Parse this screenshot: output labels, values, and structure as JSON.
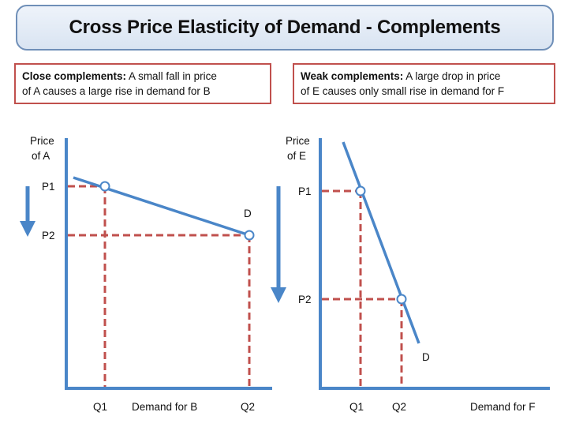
{
  "title": "Cross Price Elasticity of Demand - Complements",
  "notes": {
    "left": {
      "heading": "Close complements:",
      "text_line1": " A small fall in price",
      "text_line2": "of A causes a large rise in demand for B"
    },
    "right": {
      "heading": "Weak complements:",
      "text_line1": " A large drop in price",
      "text_line2": "of E causes only small rise in demand for F"
    }
  },
  "left_diagram": {
    "y_label_line1": "Price",
    "y_label_line2": "of A",
    "p1": "P1",
    "p2": "P2",
    "q1": "Q1",
    "q2": "Q2",
    "x_label": "Demand for B",
    "curve_label": "D"
  },
  "right_diagram": {
    "y_label_line1": "Price",
    "y_label_line2": "of E",
    "p1": "P1",
    "p2": "P2",
    "q1": "Q1",
    "q2": "Q2",
    "x_label": "Demand for F",
    "curve_label": "D"
  },
  "colors": {
    "axis": "#4a86c8",
    "curve": "#4a86c8",
    "guide": "#c0504d",
    "title_border": "#6f8fb8",
    "note_border": "#c0504d"
  }
}
